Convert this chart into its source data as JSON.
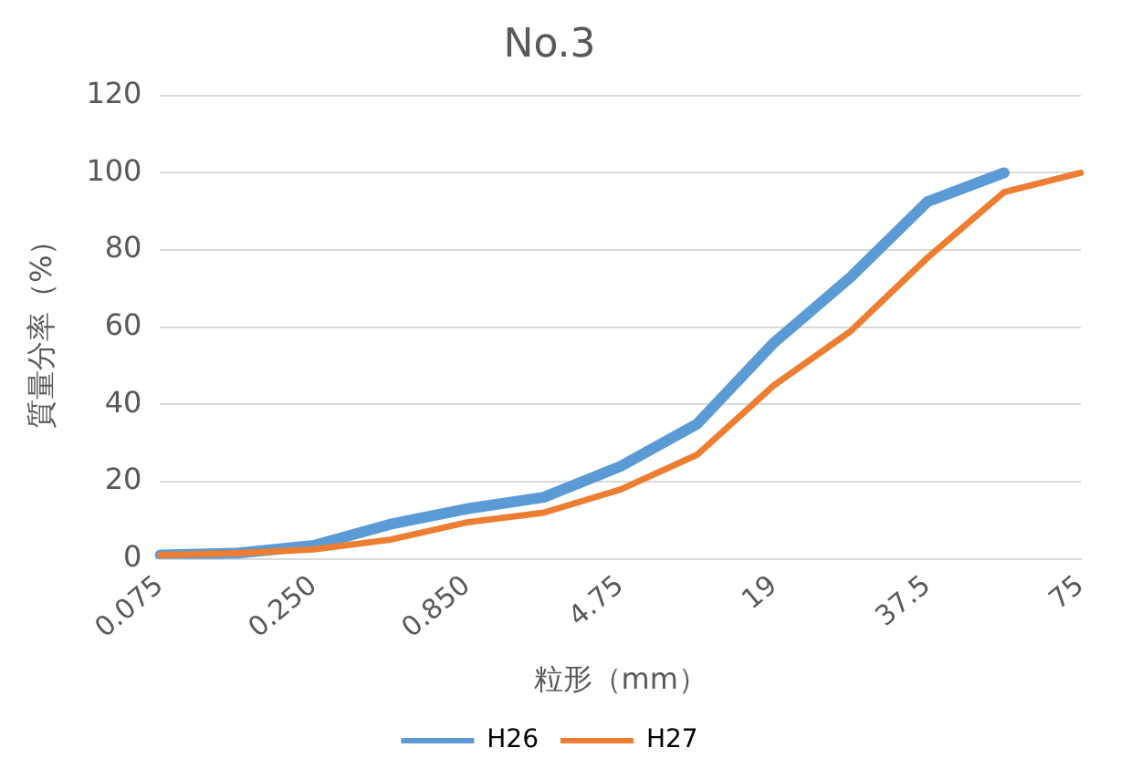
{
  "chart_data": {
    "type": "line",
    "title": "No.3",
    "xlabel": "粒形（mm）",
    "ylabel": "質量分率（%）",
    "categories": [
      "0.075",
      null,
      "0.250",
      null,
      "0.850",
      null,
      "4.75",
      null,
      "19",
      null,
      "37.5",
      null,
      "75"
    ],
    "series": [
      {
        "name": "H26",
        "color": "#5b9bd5",
        "values": [
          1,
          1.5,
          3.5,
          9,
          13,
          16,
          24,
          35,
          56,
          73,
          92.5,
          100,
          null
        ]
      },
      {
        "name": "H27",
        "color": "#ed7d31",
        "values": [
          1,
          1.5,
          2.5,
          5,
          9.5,
          12,
          18,
          27,
          45,
          59,
          78,
          95,
          100
        ]
      }
    ],
    "ylim": [
      0,
      120
    ],
    "yticks": [
      0,
      20,
      40,
      60,
      80,
      100,
      120
    ],
    "grid": "y",
    "legend": "bottom",
    "marker": "none",
    "line_style": "solid"
  }
}
